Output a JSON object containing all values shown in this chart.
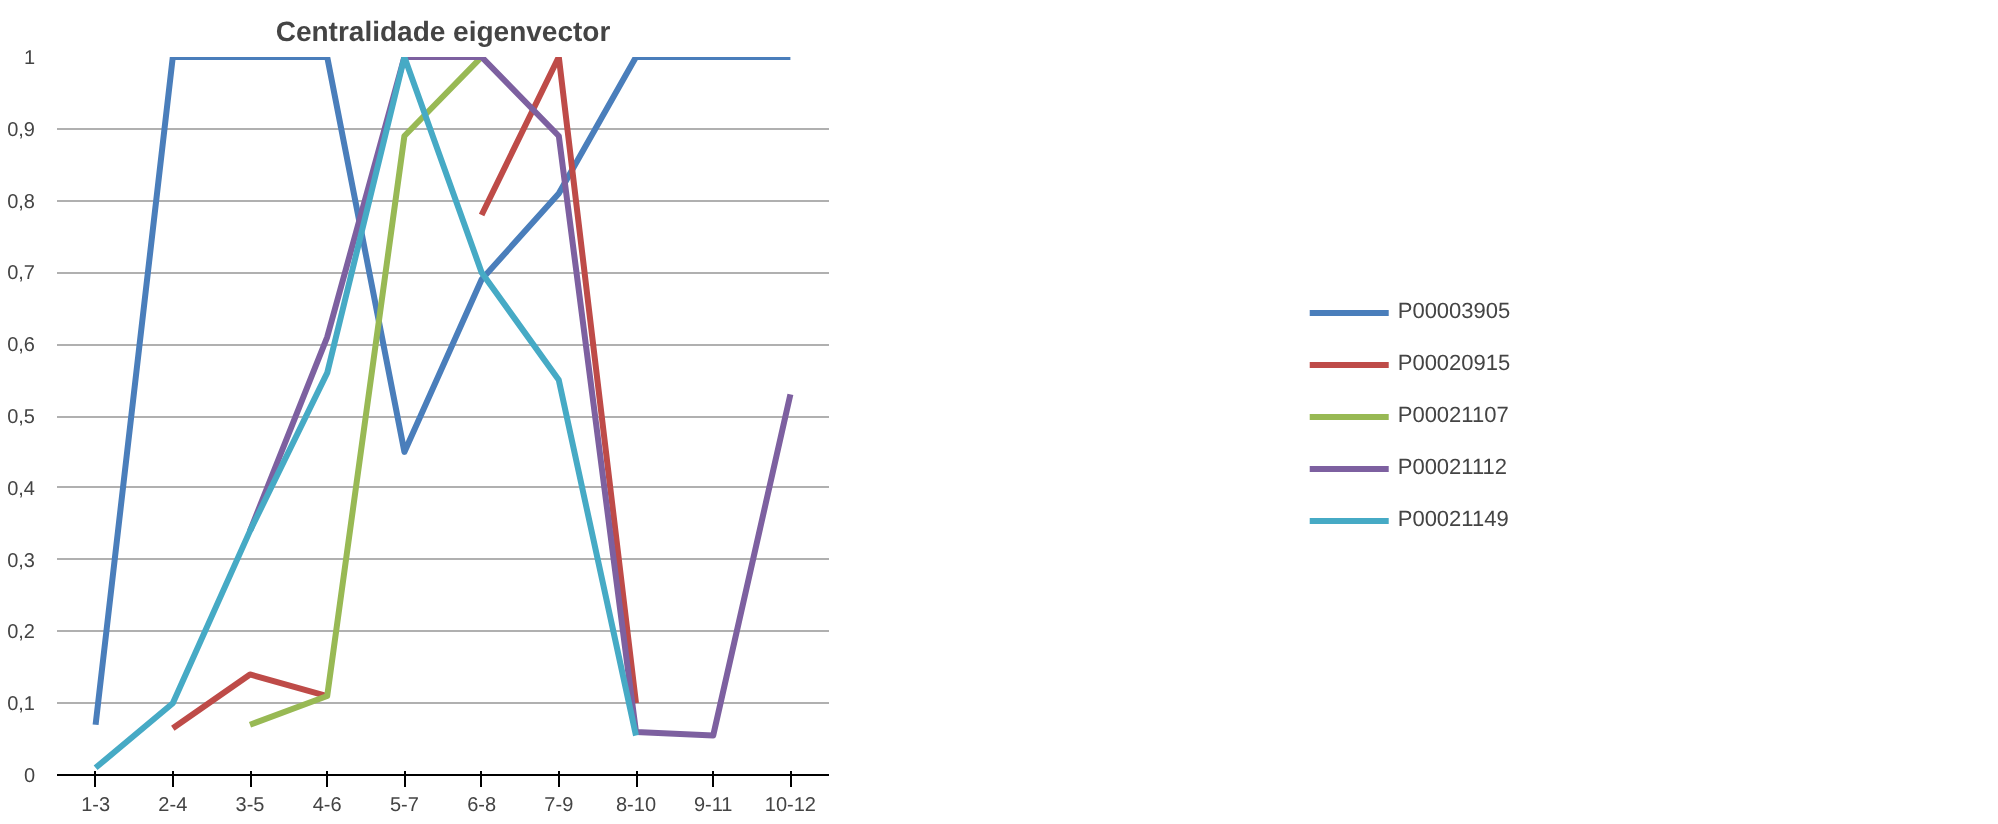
{
  "chart_data": {
    "type": "line",
    "title": "Centralidade eigenvector",
    "categories": [
      "1-3",
      "2-4",
      "3-5",
      "4-6",
      "5-7",
      "6-8",
      "7-9",
      "8-10",
      "9-11",
      "10-12"
    ],
    "series": [
      {
        "name": "P00003905",
        "color": "#4a7ebb",
        "values": [
          0.07,
          1,
          1,
          1,
          0.45,
          0.69,
          0.81,
          1,
          1,
          1
        ]
      },
      {
        "name": "P00020915",
        "color": "#be4b48",
        "values": [
          null,
          0.065,
          0.14,
          0.11,
          null,
          0.78,
          1,
          0.1,
          null,
          null
        ]
      },
      {
        "name": "P00021107",
        "color": "#98b954",
        "values": [
          null,
          null,
          0.07,
          0.11,
          0.89,
          1,
          null,
          null,
          null,
          null
        ]
      },
      {
        "name": "P00021112",
        "color": "#7d60a0",
        "values": [
          null,
          null,
          0.34,
          0.61,
          1,
          1,
          0.89,
          0.06,
          0.055,
          0.53
        ]
      },
      {
        "name": "P00021149",
        "color": "#46aac5",
        "values": [
          0.01,
          0.1,
          0.34,
          0.56,
          1,
          0.7,
          0.55,
          0.055,
          null,
          null
        ]
      }
    ],
    "ylim": [
      0,
      1
    ],
    "yticks": [
      0,
      {
        "value": 0.1,
        "label": "0,1"
      },
      {
        "value": 0.2,
        "label": "0,2"
      },
      {
        "value": 0.3,
        "label": "0,3"
      },
      {
        "value": 0.4,
        "label": "0,4"
      },
      {
        "value": 0.5,
        "label": "0,5"
      },
      {
        "value": 0.6,
        "label": "0,6"
      },
      {
        "value": 0.7,
        "label": "0,7"
      },
      {
        "value": 0.8,
        "label": "0,8"
      },
      {
        "value": 0.9,
        "label": "0,9"
      },
      1
    ],
    "grid": "y",
    "legend": "right",
    "marker": "none",
    "line_style": "solid"
  }
}
